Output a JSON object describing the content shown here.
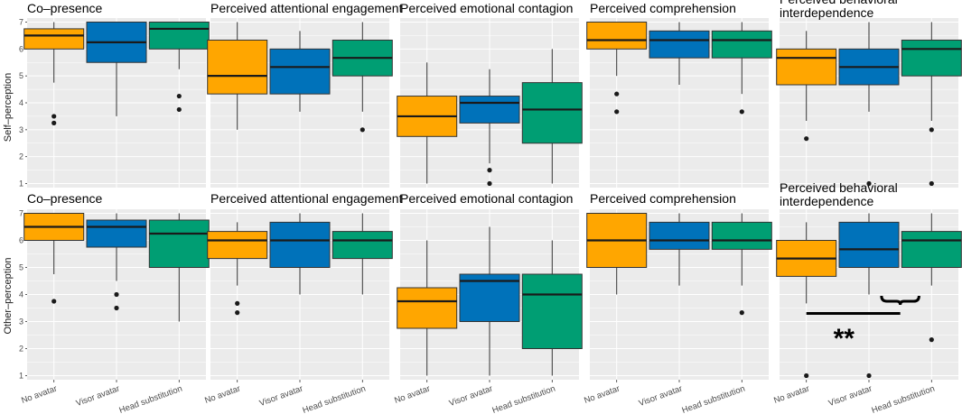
{
  "colors": {
    "panel_bg": "#ebebeb",
    "grid": "#ffffff",
    "box_stroke": "#333333",
    "series": [
      "#FFA600",
      "#0072BA",
      "#009E73"
    ]
  },
  "row_labels": [
    "Self–perception",
    "Other–perception"
  ],
  "y_ticks": [
    "1",
    "2",
    "3",
    "4",
    "5",
    "6",
    "7"
  ],
  "categories": [
    "No avatar",
    "Visor avatar",
    "Head substitution"
  ],
  "significance": {
    "label": "**",
    "row": 1,
    "panel": 4
  },
  "chart_data": [
    {
      "type": "box",
      "row": 0,
      "col": 0,
      "title": "Co–presence",
      "ylim": [
        0.85,
        7.15
      ],
      "categories": [
        "No avatar",
        "Visor avatar",
        "Head substitution"
      ],
      "boxes": [
        {
          "whisker_low": 4.75,
          "q1": 6.0,
          "median": 6.5,
          "q3": 6.75,
          "whisker_high": 7.0,
          "outliers": [
            3.5,
            3.25
          ]
        },
        {
          "whisker_low": 3.5,
          "q1": 5.5,
          "median": 6.25,
          "q3": 7.0,
          "whisker_high": 7.0,
          "outliers": []
        },
        {
          "whisker_low": 5.25,
          "q1": 6.0,
          "median": 6.75,
          "q3": 7.0,
          "whisker_high": 7.0,
          "outliers": [
            4.25,
            3.75
          ]
        }
      ]
    },
    {
      "type": "box",
      "row": 0,
      "col": 1,
      "title": "Perceived attentional engagement",
      "ylim": [
        0.85,
        7.15
      ],
      "categories": [
        "No avatar",
        "Visor avatar",
        "Head substitution"
      ],
      "boxes": [
        {
          "whisker_low": 3.0,
          "q1": 4.33,
          "median": 5.0,
          "q3": 6.33,
          "whisker_high": 7.0,
          "outliers": []
        },
        {
          "whisker_low": 3.67,
          "q1": 4.33,
          "median": 5.33,
          "q3": 6.0,
          "whisker_high": 6.67,
          "outliers": []
        },
        {
          "whisker_low": 3.67,
          "q1": 5.0,
          "median": 5.67,
          "q3": 6.33,
          "whisker_high": 7.0,
          "outliers": [
            3.0
          ]
        }
      ]
    },
    {
      "type": "box",
      "row": 0,
      "col": 2,
      "title": "Perceived emotional contagion",
      "ylim": [
        0.85,
        7.15
      ],
      "categories": [
        "No avatar",
        "Visor avatar",
        "Head substitution"
      ],
      "boxes": [
        {
          "whisker_low": 1.0,
          "q1": 2.75,
          "median": 3.5,
          "q3": 4.25,
          "whisker_high": 5.5,
          "outliers": []
        },
        {
          "whisker_low": 1.75,
          "q1": 3.25,
          "median": 4.0,
          "q3": 4.25,
          "whisker_high": 5.25,
          "outliers": [
            1.5,
            1.0
          ]
        },
        {
          "whisker_low": 1.0,
          "q1": 2.5,
          "median": 3.75,
          "q3": 4.75,
          "whisker_high": 6.0,
          "outliers": []
        }
      ]
    },
    {
      "type": "box",
      "row": 0,
      "col": 3,
      "title": "Perceived comprehension",
      "ylim": [
        0.85,
        7.15
      ],
      "categories": [
        "No avatar",
        "Visor avatar",
        "Head substitution"
      ],
      "boxes": [
        {
          "whisker_low": 5.0,
          "q1": 6.0,
          "median": 6.33,
          "q3": 7.0,
          "whisker_high": 7.0,
          "outliers": [
            4.33,
            3.67
          ]
        },
        {
          "whisker_low": 4.67,
          "q1": 5.67,
          "median": 6.33,
          "q3": 6.67,
          "whisker_high": 7.0,
          "outliers": []
        },
        {
          "whisker_low": 4.33,
          "q1": 5.67,
          "median": 6.33,
          "q3": 6.67,
          "whisker_high": 7.0,
          "outliers": [
            3.67
          ]
        }
      ]
    },
    {
      "type": "box",
      "row": 0,
      "col": 4,
      "title": "Perceived behavioral interdependence",
      "ylim": [
        0.85,
        7.15
      ],
      "categories": [
        "No avatar",
        "Visor avatar",
        "Head substitution"
      ],
      "boxes": [
        {
          "whisker_low": 3.33,
          "q1": 4.67,
          "median": 5.67,
          "q3": 6.0,
          "whisker_high": 6.67,
          "outliers": [
            2.67
          ]
        },
        {
          "whisker_low": 3.67,
          "q1": 4.67,
          "median": 5.33,
          "q3": 6.0,
          "whisker_high": 7.0,
          "outliers": [
            1.0
          ]
        },
        {
          "whisker_low": 3.33,
          "q1": 5.0,
          "median": 6.0,
          "q3": 6.33,
          "whisker_high": 7.0,
          "outliers": [
            3.0,
            1.0
          ]
        }
      ]
    },
    {
      "type": "box",
      "row": 1,
      "col": 0,
      "title": "Co–presence",
      "ylim": [
        0.85,
        7.15
      ],
      "categories": [
        "No avatar",
        "Visor avatar",
        "Head substitution"
      ],
      "boxes": [
        {
          "whisker_low": 4.75,
          "q1": 6.0,
          "median": 6.5,
          "q3": 7.0,
          "whisker_high": 7.0,
          "outliers": [
            3.75
          ]
        },
        {
          "whisker_low": 4.5,
          "q1": 5.75,
          "median": 6.5,
          "q3": 6.75,
          "whisker_high": 7.0,
          "outliers": [
            4.0,
            3.5
          ]
        },
        {
          "whisker_low": 3.0,
          "q1": 5.0,
          "median": 6.25,
          "q3": 6.75,
          "whisker_high": 7.0,
          "outliers": []
        }
      ]
    },
    {
      "type": "box",
      "row": 1,
      "col": 1,
      "title": "Perceived attentional engagement",
      "ylim": [
        0.85,
        7.15
      ],
      "categories": [
        "No avatar",
        "Visor avatar",
        "Head substitution"
      ],
      "boxes": [
        {
          "whisker_low": 4.33,
          "q1": 5.33,
          "median": 6.0,
          "q3": 6.33,
          "whisker_high": 6.67,
          "outliers": [
            3.67,
            3.33
          ]
        },
        {
          "whisker_low": 4.0,
          "q1": 5.0,
          "median": 6.0,
          "q3": 6.67,
          "whisker_high": 7.0,
          "outliers": []
        },
        {
          "whisker_low": 4.0,
          "q1": 5.33,
          "median": 6.0,
          "q3": 6.33,
          "whisker_high": 7.0,
          "outliers": []
        }
      ]
    },
    {
      "type": "box",
      "row": 1,
      "col": 2,
      "title": "Perceived emotional contagion",
      "ylim": [
        0.85,
        7.15
      ],
      "categories": [
        "No avatar",
        "Visor avatar",
        "Head substitution"
      ],
      "boxes": [
        {
          "whisker_low": 1.0,
          "q1": 2.75,
          "median": 3.75,
          "q3": 4.25,
          "whisker_high": 6.0,
          "outliers": []
        },
        {
          "whisker_low": 1.0,
          "q1": 3.0,
          "median": 4.5,
          "q3": 4.75,
          "whisker_high": 6.5,
          "outliers": []
        },
        {
          "whisker_low": 1.0,
          "q1": 2.0,
          "median": 4.0,
          "q3": 4.75,
          "whisker_high": 6.0,
          "outliers": []
        }
      ]
    },
    {
      "type": "box",
      "row": 1,
      "col": 3,
      "title": "Perceived comprehension",
      "ylim": [
        0.85,
        7.15
      ],
      "categories": [
        "No avatar",
        "Visor avatar",
        "Head substitution"
      ],
      "boxes": [
        {
          "whisker_low": 4.0,
          "q1": 5.0,
          "median": 6.0,
          "q3": 7.0,
          "whisker_high": 7.0,
          "outliers": []
        },
        {
          "whisker_low": 4.33,
          "q1": 5.67,
          "median": 6.0,
          "q3": 6.67,
          "whisker_high": 7.0,
          "outliers": []
        },
        {
          "whisker_low": 4.33,
          "q1": 5.67,
          "median": 6.0,
          "q3": 6.67,
          "whisker_high": 7.0,
          "outliers": [
            3.33
          ]
        }
      ]
    },
    {
      "type": "box",
      "row": 1,
      "col": 4,
      "title": "Perceived behavioral interdependence",
      "ylim": [
        0.85,
        7.15
      ],
      "categories": [
        "No avatar",
        "Visor avatar",
        "Head substitution"
      ],
      "boxes": [
        {
          "whisker_low": 3.67,
          "q1": 4.67,
          "median": 5.33,
          "q3": 6.0,
          "whisker_high": 6.67,
          "outliers": [
            1.0
          ]
        },
        {
          "whisker_low": 4.0,
          "q1": 5.0,
          "median": 5.67,
          "q3": 6.67,
          "whisker_high": 7.0,
          "outliers": [
            1.0
          ]
        },
        {
          "whisker_low": 4.33,
          "q1": 5.0,
          "median": 6.0,
          "q3": 6.33,
          "whisker_high": 7.0,
          "outliers": [
            2.33
          ]
        }
      ]
    }
  ]
}
